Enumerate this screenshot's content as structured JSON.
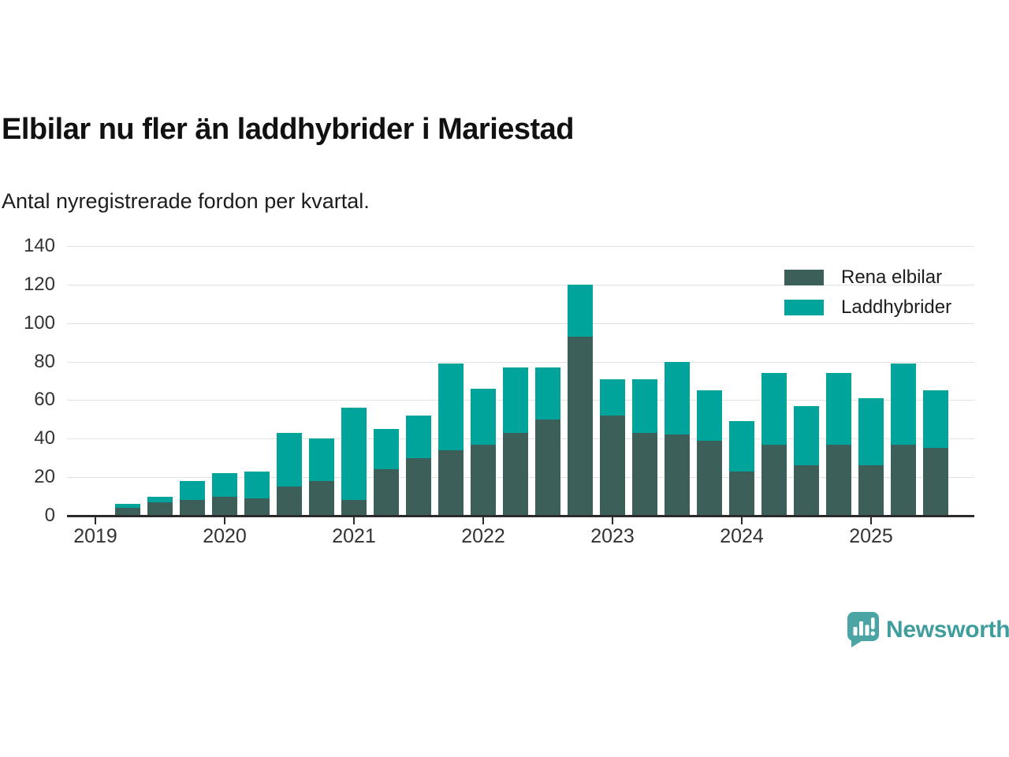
{
  "header": {
    "title": "Elbilar nu fler än laddhybrider i Mariestad",
    "subtitle": "Antal nyregistrerade fordon per kvartal."
  },
  "footer": {
    "brand": "Newsworthy"
  },
  "colors": {
    "rena_elbilar": "#3c5f59",
    "laddhybrider": "#00a49b",
    "axis": "#2b2b2b",
    "gridline": "#e2e2e2",
    "logo_teal": "#4ba5a4",
    "wordmark_teal": "#3f9e9d"
  },
  "chart_data": {
    "type": "bar",
    "stacked": true,
    "title": "Elbilar nu fler än laddhybrider i Mariestad",
    "subtitle": "Antal nyregistrerade fordon per kvartal.",
    "xlabel": "",
    "ylabel": "",
    "ylim": [
      0,
      140
    ],
    "yticks": [
      0,
      20,
      40,
      60,
      80,
      100,
      120,
      140
    ],
    "grid": "horizontal",
    "legend_position": "top-right",
    "x_year_ticks": [
      "2019",
      "2020",
      "2021",
      "2022",
      "2023",
      "2024",
      "2025"
    ],
    "categories": [
      "2019-Q2",
      "2019-Q3",
      "2019-Q4",
      "2020-Q1",
      "2020-Q2",
      "2020-Q3",
      "2020-Q4",
      "2021-Q1",
      "2021-Q2",
      "2021-Q3",
      "2021-Q4",
      "2022-Q1",
      "2022-Q2",
      "2022-Q3",
      "2022-Q4",
      "2023-Q1",
      "2023-Q2",
      "2023-Q3",
      "2023-Q4",
      "2024-Q1",
      "2024-Q2",
      "2024-Q3",
      "2024-Q4",
      "2025-Q1",
      "2025-Q2",
      "2025-Q3"
    ],
    "series": [
      {
        "name": "Rena elbilar",
        "color": "#3c5f59",
        "values": [
          4,
          7,
          8,
          10,
          9,
          15,
          18,
          8,
          24,
          30,
          34,
          37,
          43,
          50,
          93,
          52,
          43,
          42,
          39,
          23,
          37,
          26,
          37,
          26,
          37,
          35
        ]
      },
      {
        "name": "Laddhybrider",
        "color": "#00a49b",
        "values": [
          2,
          3,
          10,
          12,
          14,
          28,
          22,
          48,
          21,
          22,
          45,
          29,
          34,
          27,
          27,
          19,
          28,
          38,
          26,
          26,
          37,
          31,
          37,
          35,
          42,
          30
        ]
      }
    ],
    "totals": [
      6,
      10,
      18,
      22,
      23,
      43,
      40,
      56,
      45,
      52,
      79,
      66,
      77,
      77,
      120,
      71,
      71,
      80,
      65,
      49,
      74,
      57,
      74,
      61,
      79,
      65
    ]
  }
}
